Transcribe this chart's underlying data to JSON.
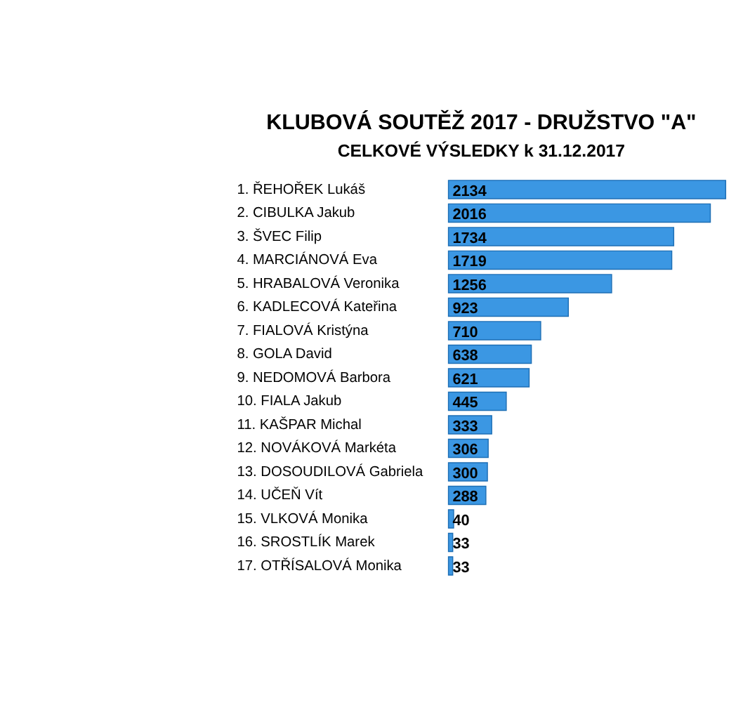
{
  "chart_data": {
    "type": "bar",
    "orientation": "horizontal",
    "title": "KLUBOVÁ SOUTĚŽ 2017 - DRUŽSTVO \"A\"",
    "subtitle": "CELKOVÉ VÝSLEDKY k 31.12.2017",
    "categories": [
      "1.  ŘEHOŘEK Lukáš",
      "2.  CIBULKA Jakub",
      "3.  ŠVEC Filip",
      "4.  MARCIÁNOVÁ Eva",
      "5.  HRABALOVÁ Veronika",
      "6.  KADLECOVÁ Kateřina",
      "7.  FIALOVÁ Kristýna",
      "8.  GOLA David",
      "9.  NEDOMOVÁ Barbora",
      "10. FIALA Jakub",
      "11. KAŠPAR Michal",
      "12. NOVÁKOVÁ Markéta",
      "13. DOSOUDILOVÁ Gabriela",
      "14. UČEŇ Vít",
      "15. VLKOVÁ Monika",
      "16. SROSTLÍK Marek",
      "17. OTŘÍSALOVÁ Monika"
    ],
    "values": [
      2134,
      2016,
      1734,
      1719,
      1256,
      923,
      710,
      638,
      621,
      445,
      333,
      306,
      300,
      288,
      40,
      33,
      33
    ],
    "color": "#3b97e3",
    "data_labels": true
  }
}
